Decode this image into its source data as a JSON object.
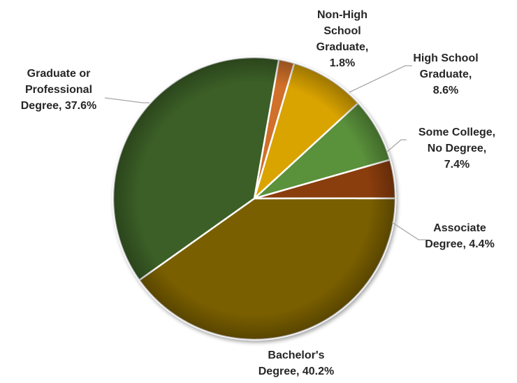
{
  "chart_data": {
    "type": "pie",
    "title": "",
    "slices": [
      {
        "name": "Non-High School Graduate",
        "value": 1.8,
        "label_lines": [
          "Non-High",
          "School",
          "Graduate,",
          "1.8%"
        ],
        "color": "#d0702a"
      },
      {
        "name": "High School Graduate",
        "value": 8.6,
        "label_lines": [
          "High School",
          "Graduate,",
          "8.6%"
        ],
        "color": "#d9a300"
      },
      {
        "name": "Some College, No Degree",
        "value": 7.4,
        "label_lines": [
          "Some College,",
          "No Degree,",
          "7.4%"
        ],
        "color": "#5a913a"
      },
      {
        "name": "Associate Degree",
        "value": 4.4,
        "label_lines": [
          "Associate",
          "Degree, 4.4%"
        ],
        "color": "#8a3c08"
      },
      {
        "name": "Bachelor's Degree",
        "value": 40.2,
        "label_lines": [
          "Bachelor's",
          "Degree, 40.2%"
        ],
        "color": "#7a5e00"
      },
      {
        "name": "Graduate or Professional Degree",
        "value": 37.6,
        "label_lines": [
          "Graduate or",
          "Professional",
          "Degree, 37.6%"
        ],
        "color": "#3b5f27"
      }
    ],
    "start_angle_deg": 10,
    "direction": "clockwise",
    "legend": "none"
  }
}
